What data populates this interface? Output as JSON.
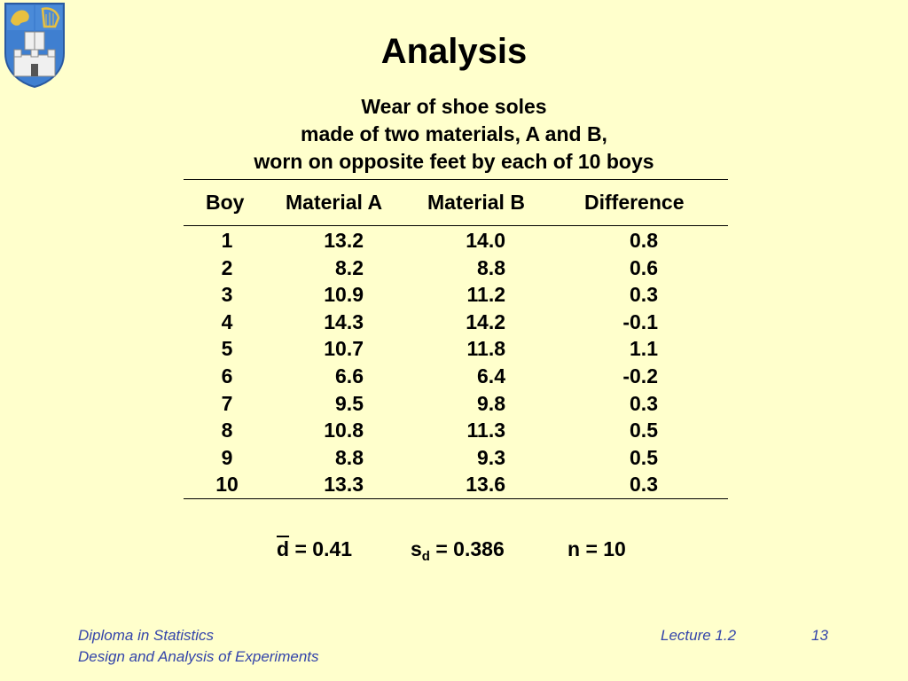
{
  "slide": {
    "title": "Analysis",
    "caption": [
      "Wear of shoe soles",
      "made of two materials, A and B,",
      "worn on opposite feet by each of 10 boys"
    ]
  },
  "table": {
    "headers": [
      "Boy",
      "Material A",
      "Material B",
      "Difference"
    ],
    "rows": [
      [
        "1",
        "13.2",
        "14.0",
        "0.8"
      ],
      [
        "2",
        "8.2",
        "8.8",
        "0.6"
      ],
      [
        "3",
        "10.9",
        "11.2",
        "0.3"
      ],
      [
        "4",
        "14.3",
        "14.2",
        "-0.1"
      ],
      [
        "5",
        "10.7",
        "11.8",
        "1.1"
      ],
      [
        "6",
        "6.6",
        "6.4",
        "-0.2"
      ],
      [
        "7",
        "9.5",
        "9.8",
        "0.3"
      ],
      [
        "8",
        "10.8",
        "11.3",
        "0.5"
      ],
      [
        "9",
        "8.8",
        "9.3",
        "0.5"
      ],
      [
        "10",
        "13.3",
        "13.6",
        "0.3"
      ]
    ]
  },
  "stats": {
    "dbar_symbol": "d",
    "dbar_value": "= 0.41",
    "sd_symbol": "s",
    "sd_subscript": "d",
    "sd_value": "= 0.386",
    "n_text": "n = 10"
  },
  "footer": {
    "course": "Diploma in Statistics",
    "module": "Design and Analysis of Experiments",
    "lecture": "Lecture 1.2",
    "page": "13"
  },
  "colors": {
    "background": "#ffffcc",
    "footer_text": "#3344aa",
    "crest_blue": "#3f7fd0",
    "crest_gold": "#e8c040"
  }
}
